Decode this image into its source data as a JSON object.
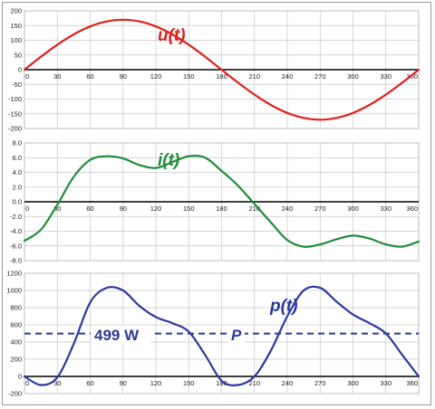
{
  "chart_data": [
    {
      "type": "line",
      "series": [
        {
          "name": "u(t)",
          "color": "#e0211b"
        }
      ],
      "x": [
        0,
        15,
        30,
        45,
        60,
        75,
        90,
        105,
        120,
        135,
        150,
        165,
        180,
        195,
        210,
        225,
        240,
        255,
        270,
        285,
        300,
        315,
        330,
        345,
        360
      ],
      "values": [
        0,
        44,
        85,
        120,
        147,
        164,
        170,
        164,
        147,
        120,
        85,
        44,
        0,
        -44,
        -85,
        -120,
        -147,
        -164,
        -170,
        -164,
        -147,
        -120,
        -85,
        -44,
        0
      ],
      "xlim": [
        0,
        360
      ],
      "ylim": [
        -200,
        200
      ],
      "xticks": [
        "0",
        "30",
        "60",
        "90",
        "120",
        "150",
        "180",
        "210",
        "240",
        "270",
        "300",
        "330",
        "360"
      ],
      "yticks": [
        "200",
        "150",
        "100",
        "50",
        "0",
        "-50",
        "-100",
        "-150",
        "-200"
      ],
      "grid": true
    },
    {
      "type": "line",
      "series": [
        {
          "name": "i(t)",
          "color": "#218c3a"
        }
      ],
      "x": [
        0,
        15,
        30,
        45,
        60,
        75,
        90,
        105,
        120,
        135,
        150,
        165,
        180,
        195,
        210,
        225,
        240,
        255,
        270,
        285,
        300,
        315,
        330,
        345,
        360
      ],
      "values": [
        -5.3,
        -3.8,
        -0.4,
        3.4,
        5.7,
        6.2,
        5.9,
        5.0,
        4.6,
        5.4,
        6.2,
        6.0,
        4.2,
        2.2,
        -0.3,
        -2.8,
        -5.2,
        -6.1,
        -5.8,
        -5.1,
        -4.6,
        -5.0,
        -5.8,
        -6.1,
        -5.4
      ],
      "xlim": [
        0,
        360
      ],
      "ylim": [
        -8,
        8
      ],
      "xticks": [
        "0",
        "30",
        "60",
        "90",
        "120",
        "150",
        "180",
        "210",
        "240",
        "270",
        "300",
        "330",
        "360"
      ],
      "yticks": [
        "8.0",
        "6.0",
        "4.0",
        "2.0",
        "0.0",
        "-2.0",
        "-4.0",
        "-6.0",
        "-8.0"
      ],
      "grid": true
    },
    {
      "type": "line",
      "series": [
        {
          "name": "p(t)",
          "color": "#2b3a9c"
        },
        {
          "name": "P",
          "color": "#2b3a9c",
          "value": 499
        }
      ],
      "x": [
        0,
        15,
        30,
        45,
        60,
        75,
        90,
        105,
        120,
        135,
        150,
        165,
        180,
        195,
        210,
        225,
        240,
        255,
        270,
        285,
        300,
        315,
        330,
        345,
        360
      ],
      "values": [
        0,
        -100,
        -10,
        380,
        860,
        1030,
        1000,
        820,
        690,
        620,
        520,
        250,
        -50,
        -100,
        0,
        300,
        700,
        1000,
        1030,
        870,
        720,
        620,
        500,
        250,
        0
      ],
      "xlim": [
        0,
        360
      ],
      "ylim": [
        -200,
        1200
      ],
      "xticks": [
        "0",
        "30",
        "60",
        "90",
        "120",
        "150",
        "180",
        "210",
        "240",
        "270",
        "300",
        "330",
        "360"
      ],
      "yticks": [
        "1200",
        "1000",
        "800",
        "600",
        "400",
        "200",
        "0",
        "-200"
      ],
      "grid": true
    }
  ],
  "labels": {
    "u": "u(t)",
    "i": "i(t)",
    "p": "p(t)",
    "avg_value": "499 W",
    "avg_symbol": "P"
  }
}
